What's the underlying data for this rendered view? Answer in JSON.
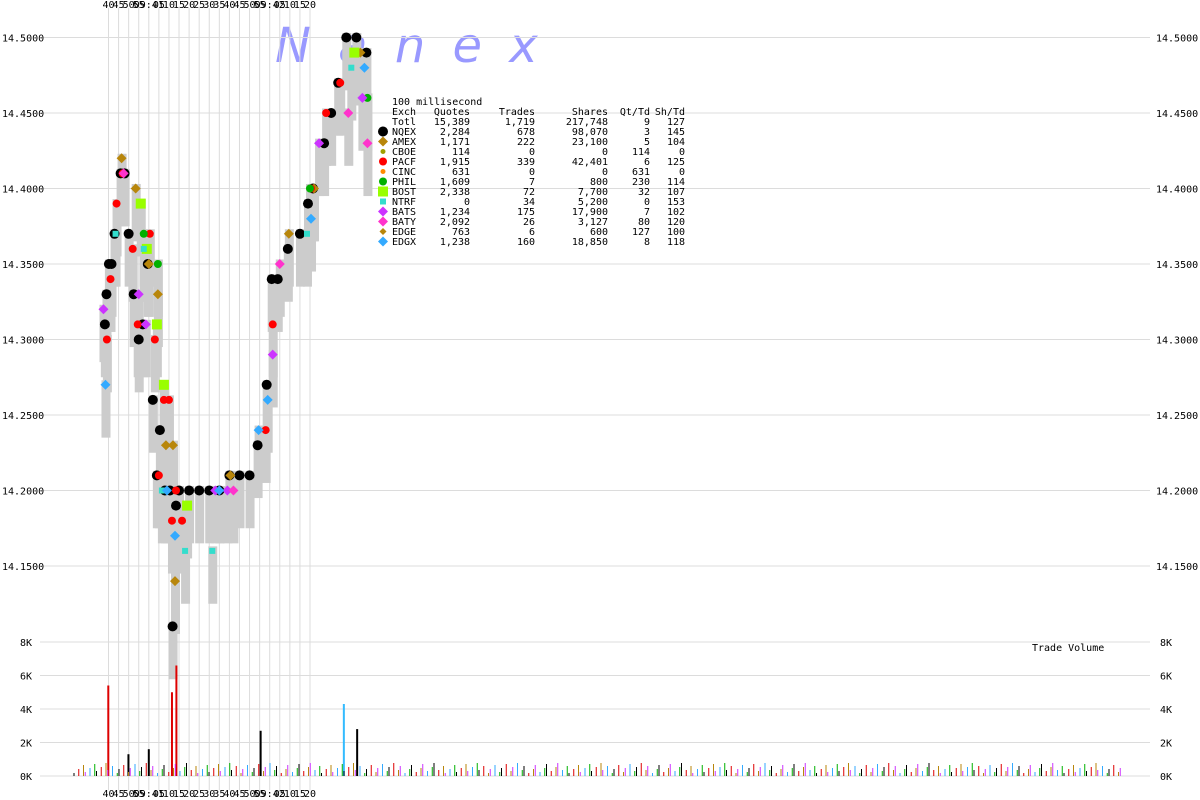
{
  "watermark": "N a n e x",
  "chart_data": [
    {
      "type": "scatter",
      "description_text": "100 millisecond",
      "x_ticks_top": [
        "40",
        "45",
        "50",
        "55",
        "09:41",
        "05",
        "10",
        "15",
        "20",
        "25",
        "30",
        "35",
        "40",
        "45",
        "50",
        "55",
        "09:42",
        "05",
        "10",
        "15",
        "20"
      ],
      "x_ticks_bottom": [
        "40",
        "45",
        "50",
        "55",
        "09:41",
        "05",
        "10",
        "15",
        "20",
        "25",
        "30",
        "35",
        "40",
        "45",
        "50",
        "55",
        "09:42",
        "05",
        "10",
        "15",
        "20"
      ],
      "y_ticks": [
        "14.5000",
        "14.4500",
        "14.4000",
        "14.3500",
        "14.3000",
        "14.2500",
        "14.2000",
        "14.1500"
      ],
      "ylim": [
        14.09,
        14.51
      ],
      "grid": true,
      "legend_columns": [
        "Exch",
        "Quotes",
        "Trades",
        "Shares",
        "Qt/Td",
        "Sh/Td"
      ],
      "legend_rows": [
        {
          "exch": "Totl",
          "quotes": "15,389",
          "trades": "1,719",
          "shares": "217,748",
          "qt_td": "9",
          "sh_td": "127",
          "color": "",
          "marker": "none"
        },
        {
          "exch": "NQEX",
          "quotes": "2,284",
          "trades": "678",
          "shares": "98,070",
          "qt_td": "3",
          "sh_td": "145",
          "color": "#000000",
          "marker": "circle-lg"
        },
        {
          "exch": "AMEX",
          "quotes": "1,171",
          "trades": "222",
          "shares": "23,100",
          "qt_td": "5",
          "sh_td": "104",
          "color": "#b8860b",
          "marker": "diamond"
        },
        {
          "exch": "CBOE",
          "quotes": "114",
          "trades": "0",
          "shares": "0",
          "qt_td": "114",
          "sh_td": "0",
          "color": "#a0a000",
          "marker": "dot"
        },
        {
          "exch": "PACF",
          "quotes": "1,915",
          "trades": "339",
          "shares": "42,401",
          "qt_td": "6",
          "sh_td": "125",
          "color": "#ff0000",
          "marker": "circle"
        },
        {
          "exch": "CINC",
          "quotes": "631",
          "trades": "0",
          "shares": "0",
          "qt_td": "631",
          "sh_td": "0",
          "color": "#ff8c00",
          "marker": "dot"
        },
        {
          "exch": "PHIL",
          "quotes": "1,609",
          "trades": "7",
          "shares": "800",
          "qt_td": "230",
          "sh_td": "114",
          "color": "#00b000",
          "marker": "circle"
        },
        {
          "exch": "BOST",
          "quotes": "2,338",
          "trades": "72",
          "shares": "7,700",
          "qt_td": "32",
          "sh_td": "107",
          "color": "#99ff00",
          "marker": "square"
        },
        {
          "exch": "NTRF",
          "quotes": "0",
          "trades": "34",
          "shares": "5,200",
          "qt_td": "0",
          "sh_td": "153",
          "color": "#33ddcc",
          "marker": "square-sm"
        },
        {
          "exch": "BATS",
          "quotes": "1,234",
          "trades": "175",
          "shares": "17,900",
          "qt_td": "7",
          "sh_td": "102",
          "color": "#cc33ff",
          "marker": "diamond"
        },
        {
          "exch": "BATY",
          "quotes": "2,092",
          "trades": "26",
          "shares": "3,127",
          "qt_td": "80",
          "sh_td": "120",
          "color": "#ff33cc",
          "marker": "diamond"
        },
        {
          "exch": "EDGE",
          "quotes": "763",
          "trades": "6",
          "shares": "600",
          "qt_td": "127",
          "sh_td": "100",
          "color": "#b8860b",
          "marker": "diamond-sm"
        },
        {
          "exch": "EDGX",
          "quotes": "1,238",
          "trades": "160",
          "shares": "18,850",
          "qt_td": "8",
          "sh_td": "118",
          "color": "#33aaff",
          "marker": "diamond"
        }
      ],
      "series": [
        {
          "name": "NQEX",
          "color": "#000000",
          "points": [
            [
              38.2,
              14.31
            ],
            [
              39.0,
              14.33
            ],
            [
              40.2,
              14.35
            ],
            [
              41.5,
              14.35
            ],
            [
              43.0,
              14.37
            ],
            [
              46.0,
              14.41
            ],
            [
              48.0,
              14.41
            ],
            [
              50.0,
              14.37
            ],
            [
              52.5,
              14.33
            ],
            [
              55.0,
              14.3
            ],
            [
              57.0,
              14.31
            ],
            [
              59.5,
              14.35
            ],
            [
              62.0,
              14.26
            ],
            [
              64.0,
              14.21
            ],
            [
              65.5,
              14.24
            ],
            [
              68.0,
              14.2
            ],
            [
              70.5,
              14.2
            ],
            [
              71.8,
              14.11
            ],
            [
              73.5,
              14.19
            ],
            [
              75.0,
              14.2
            ],
            [
              80.0,
              14.2
            ],
            [
              85.0,
              14.2
            ],
            [
              90.0,
              14.2
            ],
            [
              95.0,
              14.2
            ],
            [
              100.0,
              14.21
            ],
            [
              105.0,
              14.21
            ],
            [
              110.0,
              14.21
            ],
            [
              114.0,
              14.23
            ],
            [
              118.5,
              14.27
            ],
            [
              121.0,
              14.34
            ],
            [
              124.0,
              14.34
            ],
            [
              129.0,
              14.36
            ],
            [
              135.0,
              14.37
            ],
            [
              139.0,
              14.39
            ],
            [
              141.5,
              14.4
            ],
            [
              147.0,
              14.43
            ],
            [
              150.5,
              14.45
            ],
            [
              154.0,
              14.47
            ],
            [
              158.0,
              14.5
            ],
            [
              163.0,
              14.5
            ],
            [
              168.0,
              14.49
            ]
          ]
        },
        {
          "name": "AMEX",
          "color": "#b8860b",
          "points": [
            [
              46.5,
              14.42
            ],
            [
              53.5,
              14.4
            ],
            [
              60.0,
              14.35
            ],
            [
              64.5,
              14.33
            ],
            [
              68.5,
              14.23
            ],
            [
              72.0,
              14.23
            ],
            [
              73.0,
              14.14
            ],
            [
              100.5,
              14.21
            ],
            [
              129.5,
              14.37
            ],
            [
              142.0,
              14.4
            ],
            [
              165.0,
              14.49
            ]
          ]
        },
        {
          "name": "PACF",
          "color": "#ff0000",
          "points": [
            [
              39.2,
              14.3
            ],
            [
              41.0,
              14.34
            ],
            [
              44.0,
              14.39
            ],
            [
              47.0,
              14.41
            ],
            [
              52.0,
              14.36
            ],
            [
              54.5,
              14.31
            ],
            [
              60.5,
              14.37
            ],
            [
              63.0,
              14.3
            ],
            [
              65.0,
              14.21
            ],
            [
              67.5,
              14.26
            ],
            [
              70.0,
              14.26
            ],
            [
              71.5,
              14.18
            ],
            [
              73.5,
              14.2
            ],
            [
              76.5,
              14.18
            ],
            [
              118.0,
              14.24
            ],
            [
              121.5,
              14.31
            ],
            [
              140.5,
              14.4
            ],
            [
              148.0,
              14.45
            ],
            [
              155.0,
              14.47
            ]
          ]
        },
        {
          "name": "PHIL",
          "color": "#00b000",
          "points": [
            [
              57.5,
              14.37
            ],
            [
              64.5,
              14.35
            ],
            [
              140.0,
              14.4
            ],
            [
              168.5,
              14.46
            ]
          ]
        },
        {
          "name": "BOST",
          "color": "#99ff00",
          "points": [
            [
              56.0,
              14.39
            ],
            [
              59.0,
              14.36
            ],
            [
              64.0,
              14.31
            ],
            [
              67.5,
              14.27
            ],
            [
              79.0,
              14.19
            ],
            [
              162.0,
              14.49
            ]
          ]
        },
        {
          "name": "NTRF",
          "color": "#33ddcc",
          "points": [
            [
              43.5,
              14.37
            ],
            [
              57.5,
              14.36
            ],
            [
              66.5,
              14.2
            ],
            [
              78.0,
              14.16
            ],
            [
              91.5,
              14.16
            ],
            [
              138.5,
              14.37
            ],
            [
              160.5,
              14.48
            ]
          ]
        },
        {
          "name": "BATS",
          "color": "#cc33ff",
          "points": [
            [
              37.5,
              14.32
            ],
            [
              55.0,
              14.33
            ],
            [
              58.5,
              14.31
            ],
            [
              93.0,
              14.2
            ],
            [
              99.0,
              14.2
            ],
            [
              121.5,
              14.29
            ],
            [
              144.5,
              14.43
            ],
            [
              166.0,
              14.46
            ]
          ]
        },
        {
          "name": "BATY",
          "color": "#ff33cc",
          "points": [
            [
              47.5,
              14.41
            ],
            [
              102.0,
              14.2
            ],
            [
              125.0,
              14.35
            ],
            [
              159.0,
              14.45
            ],
            [
              168.5,
              14.43
            ]
          ]
        },
        {
          "name": "EDGX",
          "color": "#33aaff",
          "points": [
            [
              38.5,
              14.27
            ],
            [
              69.0,
              14.2
            ],
            [
              73.0,
              14.17
            ],
            [
              95.0,
              14.2
            ],
            [
              114.5,
              14.24
            ],
            [
              119.0,
              14.26
            ],
            [
              140.5,
              14.38
            ],
            [
              167.0,
              14.48
            ]
          ]
        }
      ]
    },
    {
      "type": "bar",
      "title": "Trade Volume",
      "y_ticks": [
        "8K",
        "6K",
        "4K",
        "2K",
        "0K"
      ],
      "ylim": [
        0,
        8000
      ],
      "spikes": [
        {
          "x": 39.9,
          "value": 5400,
          "color": "#dd0000"
        },
        {
          "x": 49.9,
          "value": 1300,
          "color": "#000000"
        },
        {
          "x": 60.0,
          "value": 1600,
          "color": "#000000"
        },
        {
          "x": 71.5,
          "value": 5000,
          "color": "#dd0000"
        },
        {
          "x": 73.7,
          "value": 6600,
          "color": "#dd0000"
        },
        {
          "x": 115.5,
          "value": 2700,
          "color": "#000000"
        },
        {
          "x": 156.8,
          "value": 4300,
          "color": "#33bbff"
        },
        {
          "x": 163.4,
          "value": 2800,
          "color": "#000000"
        }
      ]
    }
  ]
}
